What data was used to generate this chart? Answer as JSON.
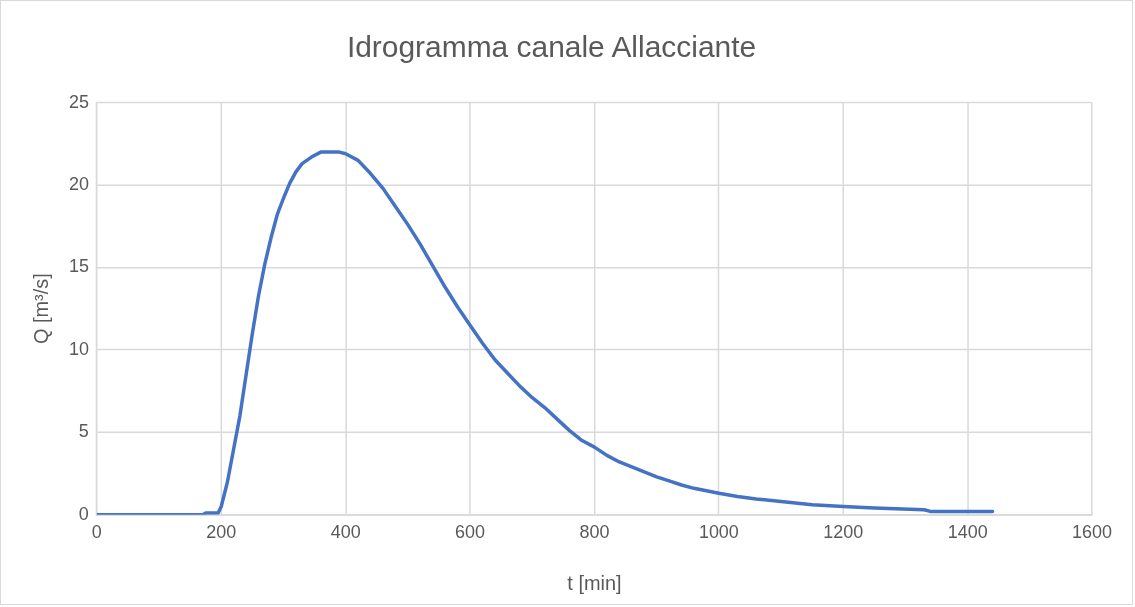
{
  "chart_data": {
    "type": "line",
    "title": "Idrogramma canale Allacciante",
    "xlabel": "t [min]",
    "ylabel": "Q [m³/s]",
    "xlim": [
      0,
      1600
    ],
    "xticks": [
      0,
      200,
      400,
      600,
      800,
      1000,
      1200,
      1400,
      1600
    ],
    "ylim": [
      0,
      25
    ],
    "yticks": [
      0,
      5,
      10,
      15,
      20,
      25
    ],
    "grid": true,
    "legend": false,
    "marker": "none",
    "series": [
      {
        "color": "#4472c4",
        "x": [
          0,
          170,
          175,
          195,
          200,
          210,
          220,
          230,
          240,
          250,
          260,
          270,
          280,
          290,
          300,
          310,
          320,
          330,
          345,
          360,
          390,
          400,
          420,
          440,
          460,
          480,
          500,
          520,
          540,
          560,
          580,
          600,
          620,
          640,
          660,
          680,
          700,
          720,
          740,
          760,
          780,
          800,
          820,
          840,
          860,
          880,
          900,
          920,
          940,
          960,
          980,
          1000,
          1030,
          1060,
          1100,
          1150,
          1200,
          1250,
          1330,
          1340,
          1440
        ],
        "values": [
          0,
          0,
          0.1,
          0.1,
          0.5,
          2,
          4,
          6,
          8.5,
          11,
          13.3,
          15.2,
          16.8,
          18.2,
          19.2,
          20.1,
          20.8,
          21.3,
          21.7,
          22,
          22,
          21.9,
          21.5,
          20.7,
          19.8,
          18.7,
          17.6,
          16.4,
          15.1,
          13.8,
          12.6,
          11.5,
          10.4,
          9.4,
          8.6,
          7.8,
          7.1,
          6.5,
          5.8,
          5.1,
          4.5,
          4.1,
          3.6,
          3.2,
          2.9,
          2.6,
          2.3,
          2.05,
          1.8,
          1.6,
          1.45,
          1.3,
          1.1,
          0.95,
          0.8,
          0.6,
          0.5,
          0.4,
          0.3,
          0.2,
          0.2
        ]
      }
    ]
  }
}
